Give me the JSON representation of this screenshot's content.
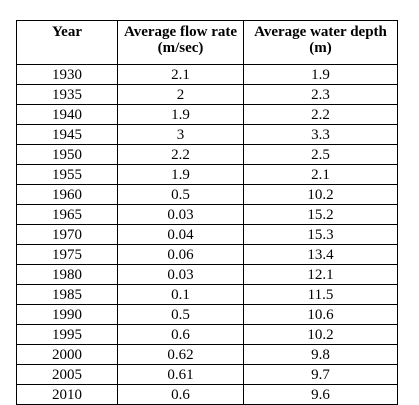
{
  "table": {
    "headers": [
      "Year",
      "Average flow rate (m/sec)",
      "Average water depth (m)"
    ],
    "rows": [
      [
        "1930",
        "2.1",
        "1.9"
      ],
      [
        "1935",
        "2",
        "2.3"
      ],
      [
        "1940",
        "1.9",
        "2.2"
      ],
      [
        "1945",
        "3",
        "3.3"
      ],
      [
        "1950",
        "2.2",
        "2.5"
      ],
      [
        "1955",
        "1.9",
        "2.1"
      ],
      [
        "1960",
        "0.5",
        "10.2"
      ],
      [
        "1965",
        "0.03",
        "15.2"
      ],
      [
        "1970",
        "0.04",
        "15.3"
      ],
      [
        "1975",
        "0.06",
        "13.4"
      ],
      [
        "1980",
        "0.03",
        "12.1"
      ],
      [
        "1985",
        "0.1",
        "11.5"
      ],
      [
        "1990",
        "0.5",
        "10.6"
      ],
      [
        "1995",
        "0.6",
        "10.2"
      ],
      [
        "2000",
        "0.62",
        "9.8"
      ],
      [
        "2005",
        "0.61",
        "9.7"
      ],
      [
        "2010",
        "0.6",
        "9.6"
      ]
    ]
  },
  "colors": {
    "text": "#000000",
    "border": "#000000",
    "background": "#ffffff"
  }
}
